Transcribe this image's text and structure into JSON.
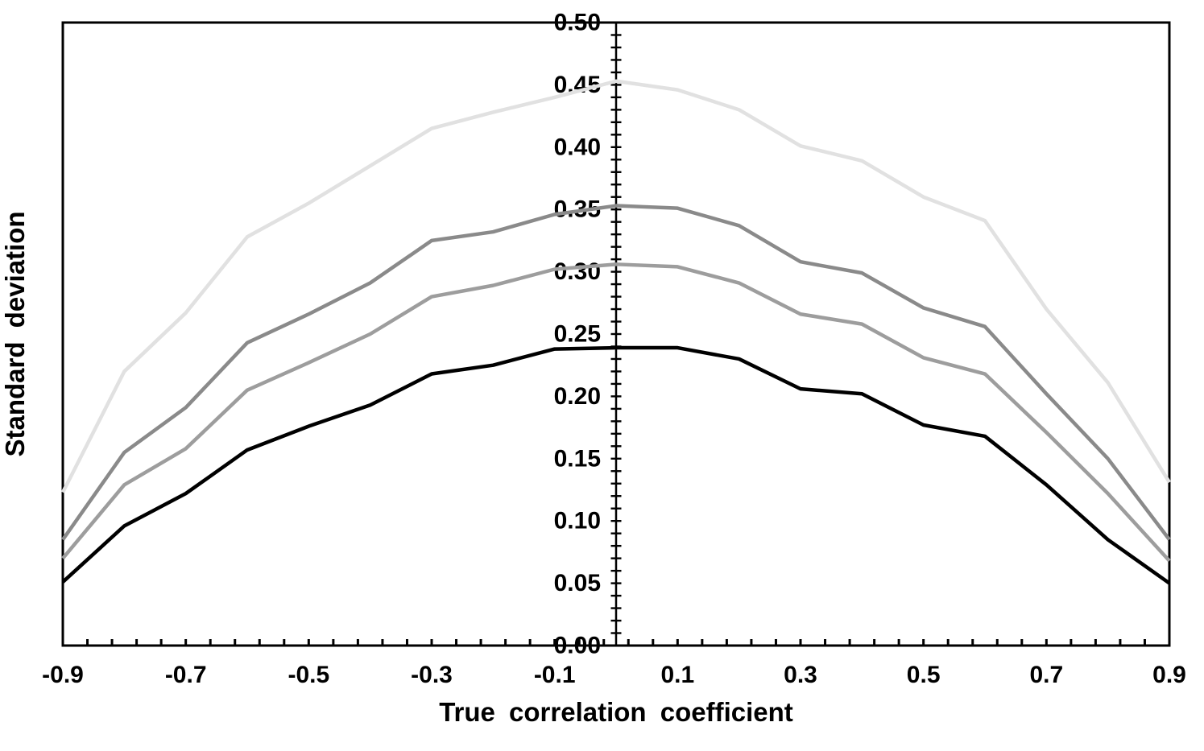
{
  "figure": {
    "x_axis_title": "True correlation coefficient",
    "y_axis_title": "Standard deviation"
  },
  "chart_data": {
    "type": "line",
    "title": "",
    "xlabel": "True correlation coefficient",
    "ylabel": "Standard deviation",
    "xlim": [
      -0.9,
      0.9
    ],
    "ylim": [
      0.0,
      0.5
    ],
    "grid": false,
    "legend": false,
    "background_color": "#ffffff",
    "axis_color": "#000000",
    "frame": true,
    "center_y_axis_at_x": 0,
    "x_tick_labels": [
      "-0.9",
      "-0.7",
      "-0.5",
      "-0.3",
      "-0.1",
      "0.1",
      "0.3",
      "0.5",
      "0.7",
      "0.9"
    ],
    "x_minor_tick_step": 0.04,
    "y_label_step": 0.05,
    "y_minor_tick_step": 0.01,
    "y_label_decimals": 2,
    "x": [
      -0.9,
      -0.8,
      -0.7,
      -0.6,
      -0.5,
      -0.4,
      -0.3,
      -0.2,
      -0.1,
      0.0,
      0.1,
      0.2,
      0.3,
      0.4,
      0.5,
      0.6,
      0.7,
      0.8,
      0.9
    ],
    "series": [
      {
        "color": "#e1e1e1",
        "values": [
          0.123,
          0.22,
          0.267,
          0.328,
          0.355,
          0.385,
          0.415,
          0.428,
          0.44,
          0.453,
          0.446,
          0.43,
          0.401,
          0.389,
          0.36,
          0.341,
          0.27,
          0.211,
          0.131
        ]
      },
      {
        "color": "#8a8a8a",
        "values": [
          0.085,
          0.155,
          0.191,
          0.243,
          0.266,
          0.291,
          0.325,
          0.332,
          0.346,
          0.353,
          0.351,
          0.337,
          0.308,
          0.299,
          0.271,
          0.256,
          0.202,
          0.15,
          0.085
        ]
      },
      {
        "color": "#9d9d9d",
        "values": [
          0.07,
          0.129,
          0.158,
          0.205,
          0.227,
          0.25,
          0.28,
          0.289,
          0.302,
          0.306,
          0.304,
          0.291,
          0.266,
          0.258,
          0.231,
          0.218,
          0.171,
          0.122,
          0.068
        ]
      },
      {
        "color": "#000000",
        "values": [
          0.051,
          0.096,
          0.122,
          0.157,
          0.176,
          0.193,
          0.218,
          0.225,
          0.238,
          0.239,
          0.239,
          0.23,
          0.206,
          0.202,
          0.177,
          0.168,
          0.129,
          0.085,
          0.05
        ]
      }
    ]
  }
}
